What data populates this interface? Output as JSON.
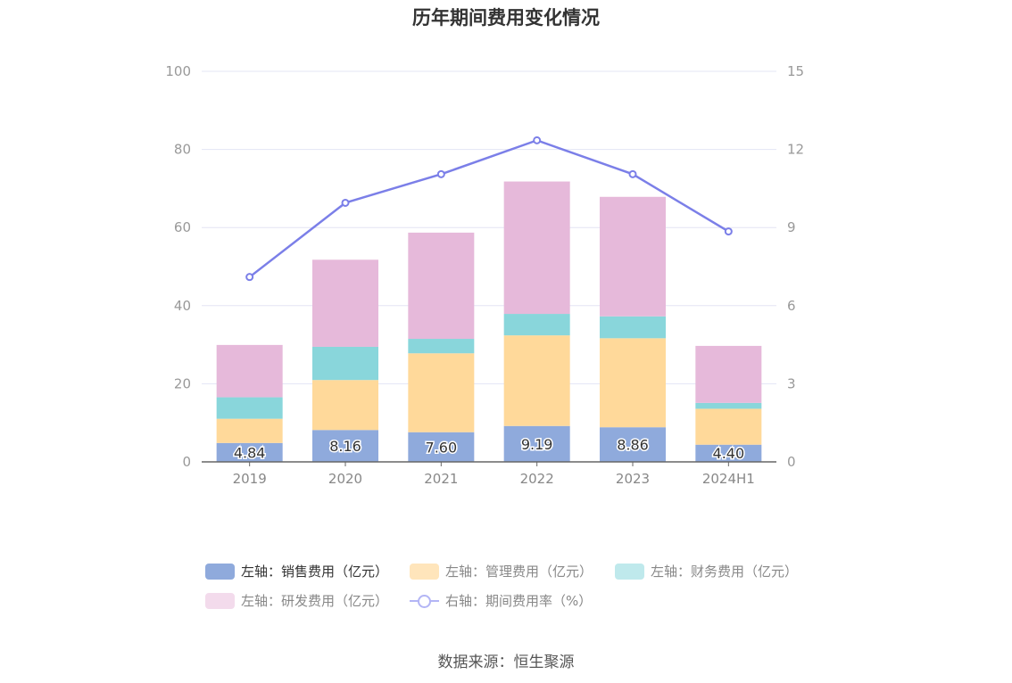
{
  "chart_data": {
    "type": "bar",
    "title": "历年期间费用变化情况",
    "categories": [
      "2019",
      "2020",
      "2021",
      "2022",
      "2023",
      "2024H1"
    ],
    "left_axis": {
      "ticks": [
        "0",
        "20",
        "40",
        "60",
        "80",
        "100"
      ],
      "range": [
        0,
        100
      ]
    },
    "right_axis": {
      "ticks": [
        "0",
        "3",
        "6",
        "9",
        "12",
        "15"
      ],
      "range": [
        0,
        15
      ]
    },
    "stacked_series": [
      {
        "name": "左轴：销售费用（亿元）",
        "color": "#8faadc",
        "values": [
          4.84,
          8.16,
          7.6,
          9.19,
          8.86,
          4.4
        ],
        "labels": [
          "4.84",
          "8.16",
          "7.60",
          "9.19",
          "8.86",
          "4.40"
        ]
      },
      {
        "name": "左轴：管理费用（亿元）",
        "color": "#ffd99a",
        "values": [
          6.2,
          12.8,
          20.2,
          23.2,
          22.8,
          9.2
        ]
      },
      {
        "name": "左轴：财务费用（亿元）",
        "color": "#89d6db",
        "values": [
          5.5,
          8.5,
          3.7,
          5.5,
          5.6,
          1.5
        ]
      },
      {
        "name": "左轴：研发费用（亿元）",
        "color": "#e6b9da",
        "values": [
          13.4,
          22.3,
          27.2,
          33.9,
          30.6,
          14.6
        ]
      }
    ],
    "line_series": {
      "name": "右轴：期间费用率（%）",
      "color": "#7b7fe8",
      "values": [
        7.1,
        9.95,
        11.05,
        12.35,
        11.05,
        8.85
      ]
    },
    "grid": true,
    "legend_position": "bottom"
  },
  "legend": {
    "items": [
      {
        "label": "左轴：销售费用（亿元）",
        "color": "#8faadc",
        "kind": "bar"
      },
      {
        "label": "左轴：管理费用（亿元）",
        "color": "#ffe5bb",
        "kind": "bar"
      },
      {
        "label": "左轴：财务费用（亿元）",
        "color": "#bfe9ec",
        "kind": "bar"
      },
      {
        "label": "左轴：研发费用（亿元）",
        "color": "#f3dbec",
        "kind": "bar"
      },
      {
        "label": "右轴：期间费用率（%）",
        "color": "#b3b5f5",
        "kind": "line"
      }
    ]
  },
  "source": "数据来源：恒生聚源"
}
